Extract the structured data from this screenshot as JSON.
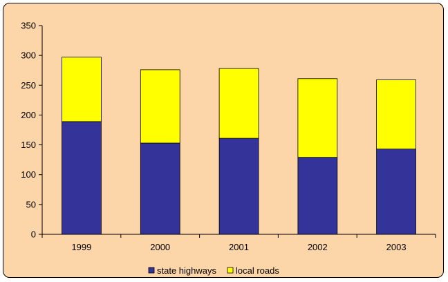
{
  "chart_data": {
    "type": "bar",
    "stacked": true,
    "categories": [
      "1999",
      "2000",
      "2001",
      "2002",
      "2003"
    ],
    "series": [
      {
        "name": "state highways",
        "values": [
          189,
          153,
          161,
          129,
          143
        ],
        "color": "#333399"
      },
      {
        "name": "local roads",
        "values": [
          108,
          123,
          117,
          132,
          116
        ],
        "color": "#ffff00"
      }
    ],
    "title": "",
    "xlabel": "",
    "ylabel": "",
    "ylim": [
      0,
      350
    ],
    "yticks": [
      "0",
      "50",
      "100",
      "150",
      "200",
      "250",
      "300",
      "350"
    ],
    "grid": false,
    "legend_position": "bottom",
    "background_color": "#fcd5a8",
    "axis_color": "#000000"
  }
}
